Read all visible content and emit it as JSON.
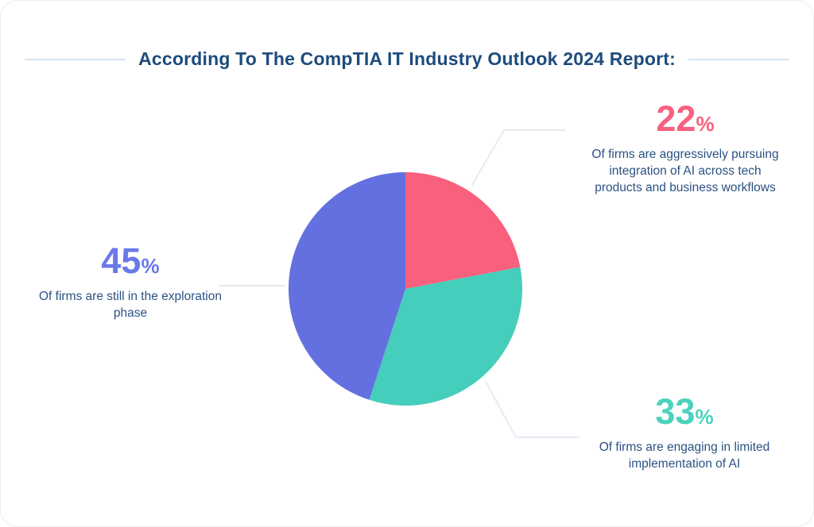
{
  "title": "According To The CompTIA IT Industry Outlook 2024 Report:",
  "chart_data": {
    "type": "pie",
    "title": "According To The CompTIA IT Industry Outlook 2024 Report:",
    "unit": "%",
    "start_angle_deg": 0,
    "direction": "clockwise",
    "slices": [
      {
        "label": "Of firms are aggressively pursuing integration of AI across tech products and business workflows",
        "value": 22,
        "color": "#f9607e"
      },
      {
        "label": "Of firms are engaging in limited implementation of AI",
        "value": 33,
        "color": "#45cebb"
      },
      {
        "label": "Of firms are still in the exploration phase",
        "value": 45,
        "color": "#6470e0"
      }
    ],
    "legend_position": "callouts-around-chart",
    "grid": false
  },
  "callouts": [
    {
      "value": "22",
      "unit": "%",
      "accent": "#f8617f",
      "description": "Of firms are aggressively pursuing integration of AI across tech products and business workflows"
    },
    {
      "value": "45",
      "unit": "%",
      "accent": "#6b79e8",
      "description": "Of firms are still in the exploration phase"
    },
    {
      "value": "33",
      "unit": "%",
      "accent": "#4cd2bd",
      "description": "Of firms are engaging in limited implementation of AI"
    }
  ],
  "colors": {
    "title_text": "#1d4b7c",
    "body_text": "#2b5284",
    "title_rule": "#d9e4ef",
    "connector_line": "#e4ebf3",
    "card_border": "#e9edf2",
    "background": "#ffffff"
  }
}
